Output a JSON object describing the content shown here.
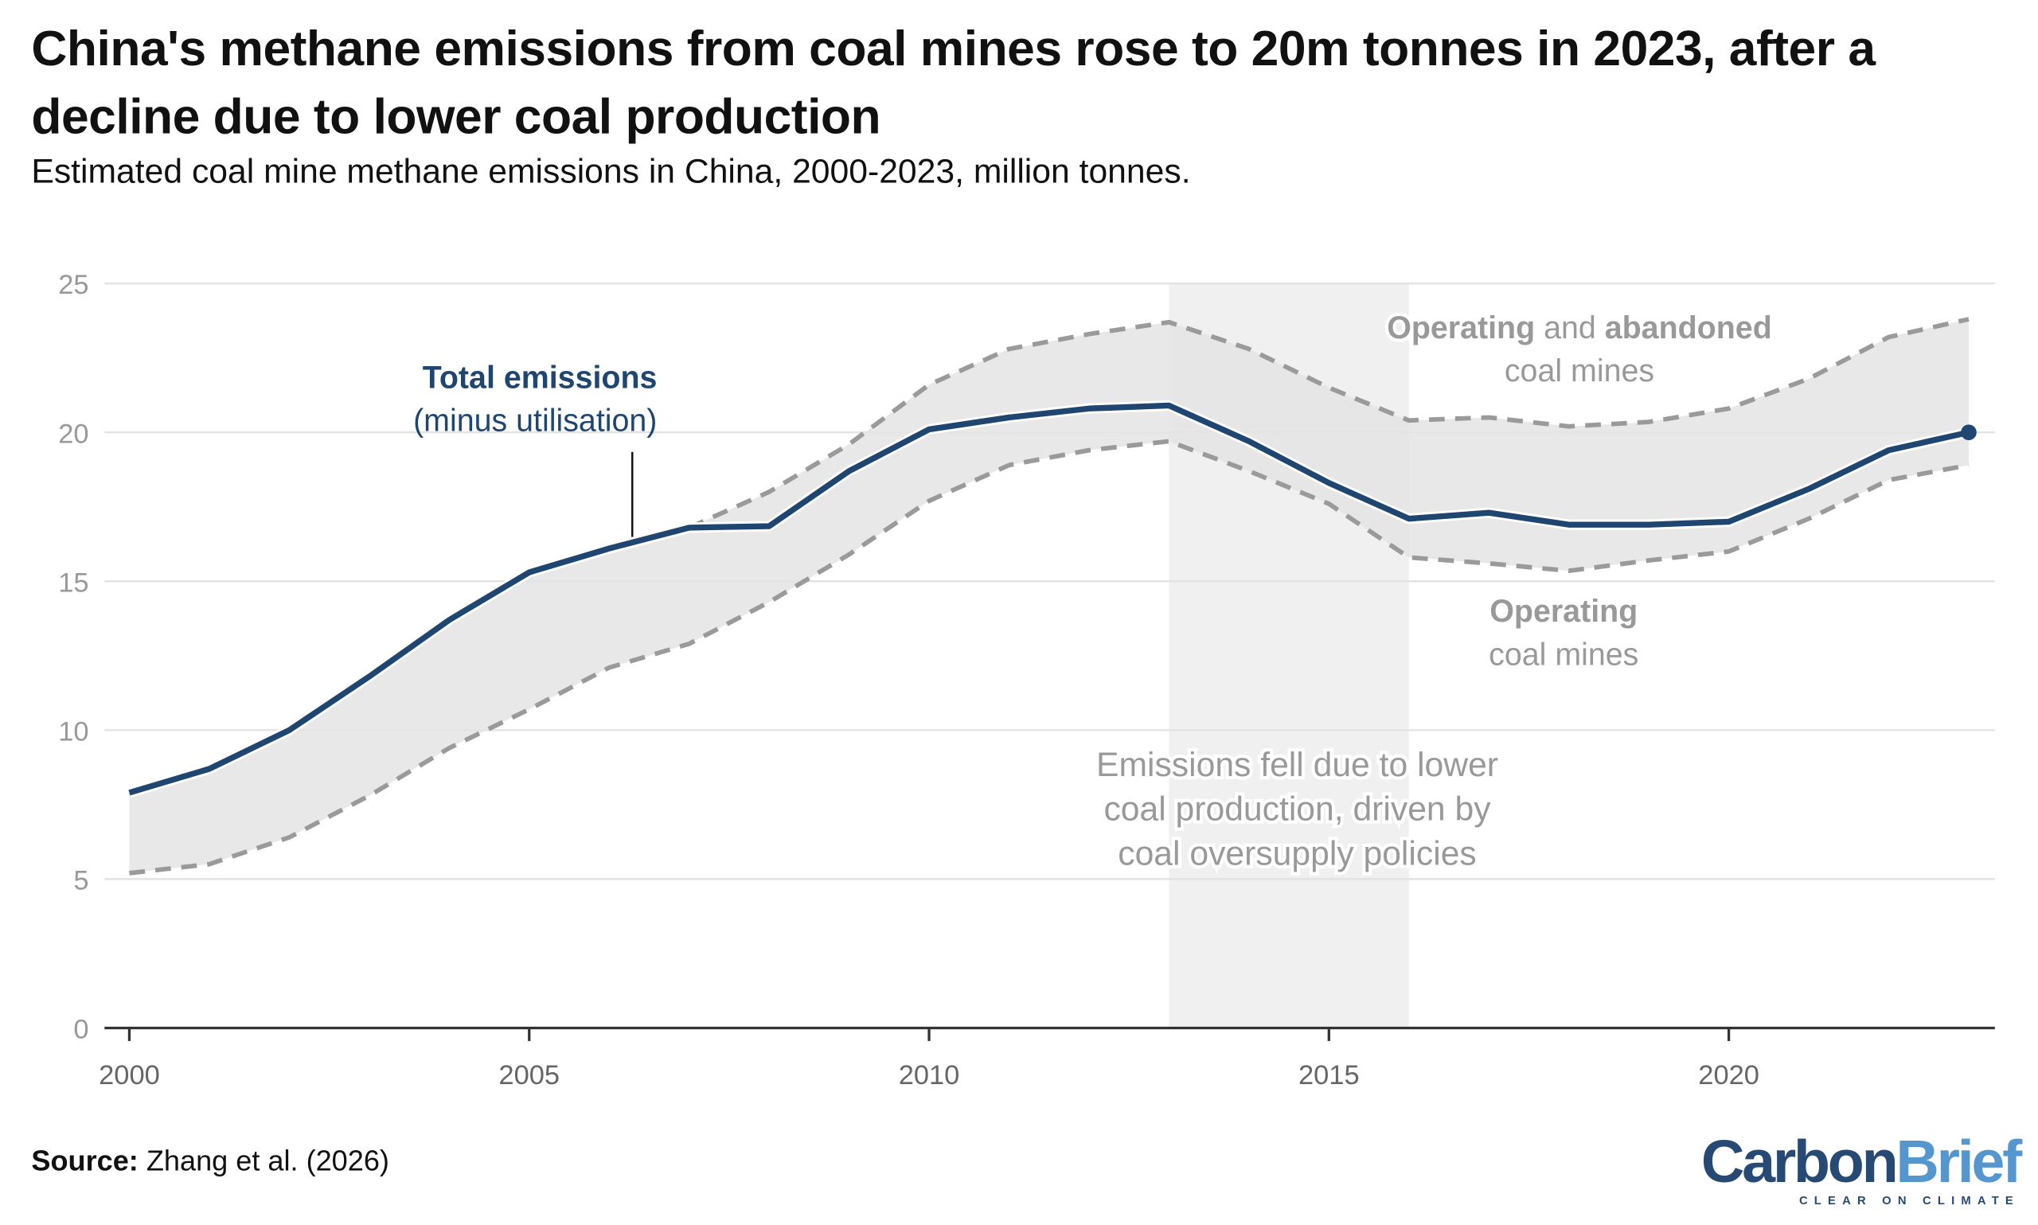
{
  "title": "China's methane emissions from coal mines rose to 20m tonnes in 2023, after a decline due to lower coal production",
  "subtitle": "Estimated coal mine methane emissions in China, 2000-2023, million tonnes.",
  "source_label": "Source:",
  "source_text": "Zhang et al. (2026)",
  "logo": {
    "part1": "Carbon",
    "part2": "Brief",
    "tagline": "CLEAR ON CLIMATE"
  },
  "colors": {
    "total": "#1f4670",
    "bounds": "#9a9a9a",
    "band": "#e4e4e4",
    "highlight": "#f0f0f0",
    "logo_dark": "#264a74",
    "logo_light": "#5596cf"
  },
  "chart_data": {
    "type": "line",
    "title": "",
    "xlabel": "",
    "ylabel": "",
    "xlim": [
      2000,
      2023
    ],
    "ylim": [
      0,
      25
    ],
    "grid": true,
    "y_ticks": [
      0,
      5,
      10,
      15,
      20,
      25
    ],
    "x_ticks": [
      2000,
      2005,
      2010,
      2015,
      2020
    ],
    "x": [
      2000,
      2001,
      2002,
      2003,
      2004,
      2005,
      2006,
      2007,
      2008,
      2009,
      2010,
      2011,
      2012,
      2013,
      2014,
      2015,
      2016,
      2017,
      2018,
      2019,
      2020,
      2021,
      2022,
      2023
    ],
    "series": [
      {
        "key": "total",
        "style": "solid",
        "values": [
          7.9,
          8.7,
          10.0,
          11.8,
          13.7,
          15.3,
          16.1,
          16.8,
          16.85,
          18.7,
          20.1,
          20.5,
          20.8,
          20.9,
          19.7,
          18.3,
          17.1,
          17.3,
          16.9,
          16.9,
          17.0,
          18.1,
          19.4,
          20.0
        ]
      },
      {
        "key": "upper",
        "style": "dashed",
        "values": [
          null,
          null,
          null,
          null,
          null,
          null,
          null,
          16.8,
          18.0,
          19.6,
          21.6,
          22.8,
          23.3,
          23.7,
          22.8,
          21.5,
          20.4,
          20.5,
          20.2,
          20.35,
          20.8,
          21.8,
          23.2,
          23.8
        ]
      },
      {
        "key": "lower",
        "style": "dashed",
        "values": [
          5.2,
          5.5,
          6.4,
          7.8,
          9.4,
          10.7,
          12.1,
          12.9,
          14.3,
          15.9,
          17.7,
          18.9,
          19.4,
          19.7,
          18.7,
          17.6,
          15.8,
          15.6,
          15.35,
          15.7,
          16.0,
          17.1,
          18.4,
          18.9
        ]
      }
    ],
    "highlight_range": [
      2013,
      2016
    ],
    "annotations": {
      "total_bold": "Total emissions",
      "total_sub": "(minus utilisation)",
      "upper_bold1": "Operating",
      "upper_mid": " and ",
      "upper_bold2": "abandoned",
      "upper_sub": "coal mines",
      "lower_bold": "Operating",
      "lower_sub": "coal mines",
      "period_line1": "Emissions fell due to lower",
      "period_line2": "coal production, driven by",
      "period_line3": "coal oversupply policies"
    }
  }
}
